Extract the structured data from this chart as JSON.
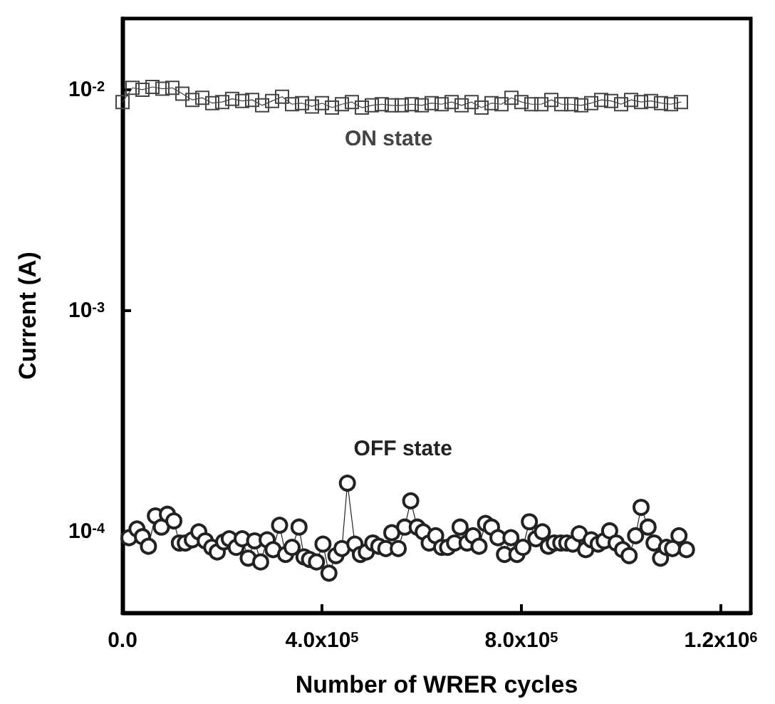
{
  "chart_data": {
    "type": "line",
    "xlabel": "Number of WRER cycles",
    "ylabel": "Current (A)",
    "log": "y",
    "grid": false,
    "legend": false,
    "xlim": [
      0,
      1260000
    ],
    "xticks": [
      {
        "value": 0,
        "label": "0.0"
      },
      {
        "value": 400000,
        "label": "4.0x10$^{5}$"
      },
      {
        "value": 800000,
        "label": "8.0x10$^{5}$"
      },
      {
        "value": 1200000,
        "label": "1.2x10$^{6}$"
      }
    ],
    "ylim": [
      4.3e-05,
      0.021
    ],
    "yticks": [
      {
        "value": 0.0001,
        "label": "10$^{-4}$"
      },
      {
        "value": 0.001,
        "label": "10$^{-3}$"
      },
      {
        "value": 0.01,
        "label": "10$^{-2}$"
      }
    ],
    "series": [
      {
        "name": "ON state",
        "color": "#444444",
        "marker": "square",
        "x": [
          0,
          20000,
          40000,
          60000,
          80000,
          100000,
          120000,
          140000,
          160000,
          180000,
          200000,
          220000,
          240000,
          260000,
          280000,
          300000,
          320000,
          340000,
          360000,
          380000,
          400000,
          420000,
          440000,
          460000,
          480000,
          500000,
          520000,
          540000,
          560000,
          580000,
          600000,
          620000,
          640000,
          660000,
          680000,
          700000,
          720000,
          740000,
          760000,
          780000,
          800000,
          820000,
          840000,
          860000,
          880000,
          900000,
          920000,
          940000,
          960000,
          980000,
          1000000,
          1020000,
          1040000,
          1060000,
          1080000,
          1100000,
          1120000
        ],
        "values": [
          0.0088,
          0.0102,
          0.01,
          0.0103,
          0.0101,
          0.0102,
          0.0096,
          0.009,
          0.0092,
          0.0087,
          0.0088,
          0.0091,
          0.0089,
          0.009,
          0.0085,
          0.0089,
          0.0093,
          0.0086,
          0.0087,
          0.0084,
          0.0087,
          0.0083,
          0.0086,
          0.0088,
          0.0083,
          0.0085,
          0.0086,
          0.0085,
          0.0085,
          0.0086,
          0.0085,
          0.0087,
          0.0086,
          0.0088,
          0.0085,
          0.0088,
          0.0083,
          0.0087,
          0.0086,
          0.0092,
          0.0088,
          0.0086,
          0.0086,
          0.009,
          0.0086,
          0.0086,
          0.0085,
          0.0087,
          0.009,
          0.0089,
          0.0086,
          0.009,
          0.0088,
          0.0089,
          0.0087,
          0.0086,
          0.0088
        ]
      },
      {
        "name": "OFF state",
        "color": "#222222",
        "marker": "circle",
        "x": [
          13000,
          29000,
          40000,
          52000,
          66000,
          78000,
          90000,
          103000,
          114000,
          126000,
          140000,
          153000,
          166000,
          179000,
          190000,
          203000,
          214000,
          228000,
          240000,
          252000,
          265000,
          277000,
          290000,
          302000,
          315000,
          327000,
          340000,
          354000,
          364000,
          375000,
          389000,
          402000,
          414000,
          428000,
          440000,
          451000,
          466000,
          477000,
          489000,
          502000,
          514000,
          528000,
          540000,
          553000,
          566000,
          578000,
          591000,
          603000,
          615000,
          628000,
          640000,
          652000,
          666000,
          677000,
          691000,
          703000,
          715000,
          728000,
          740000,
          753000,
          766000,
          779000,
          791000,
          803000,
          816000,
          829000,
          842000,
          854000,
          866000,
          879000,
          891000,
          903000,
          916000,
          929000,
          940000,
          954000,
          966000,
          977000,
          990000,
          1003000,
          1016000,
          1029000,
          1040000,
          1054000,
          1066000,
          1079000,
          1091000,
          1103000,
          1116000,
          1131000
        ],
        "values": [
          9.4e-05,
          0.000103,
          9.5e-05,
          8.6e-05,
          0.000118,
          0.000105,
          0.00012,
          0.000112,
          8.9e-05,
          8.9e-05,
          9.2e-05,
          0.0001,
          9.1e-05,
          8.5e-05,
          8.1e-05,
          9e-05,
          9.3e-05,
          8.5e-05,
          9.3e-05,
          7.6e-05,
          9.1e-05,
          7.3e-05,
          9.2e-05,
          8.3e-05,
          0.000107,
          7.9e-05,
          8.5e-05,
          0.000105,
          7.7e-05,
          7.5e-05,
          7.3e-05,
          8.8e-05,
          6.5e-05,
          7.8e-05,
          8.4e-05,
          0.000166,
          8.8e-05,
          7.9e-05,
          8.1e-05,
          8.9e-05,
          8.6e-05,
          8.4e-05,
          9.9e-05,
          8.4e-05,
          0.000105,
          0.000138,
          0.000105,
          0.0001,
          8.9e-05,
          9.6e-05,
          8.5e-05,
          8.5e-05,
          8.9e-05,
          0.000105,
          8.9e-05,
          9.6e-05,
          8.6e-05,
          0.000109,
          0.000105,
          9.4e-05,
          7.9e-05,
          9.4e-05,
          7.9e-05,
          8.5e-05,
          0.000111,
          9.3e-05,
          0.0001,
          8.6e-05,
          8.9e-05,
          8.9e-05,
          8.9e-05,
          8.8e-05,
          9.8e-05,
          8.3e-05,
          9.2e-05,
          8.8e-05,
          9.1e-05,
          0.000101,
          8.9e-05,
          8.3e-05,
          7.8e-05,
          9.6e-05,
          0.000129,
          0.000105,
          8.9e-05,
          7.6e-05,
          8.5e-05,
          8.4e-05,
          9.6e-05,
          8.3e-05
        ]
      }
    ]
  }
}
